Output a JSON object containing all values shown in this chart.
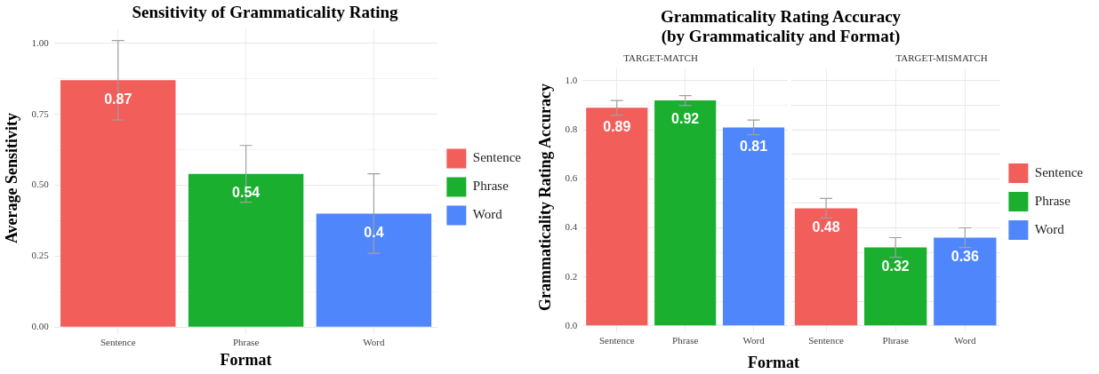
{
  "chart_data": [
    {
      "type": "bar",
      "title": "Sensitivity of Grammaticality Rating",
      "xlabel": "Format",
      "ylabel": "Average Sensitivity",
      "categories": [
        "Sentence",
        "Phrase",
        "Word"
      ],
      "series": [
        {
          "name": "Sentence",
          "color": "#f25e5a",
          "values": [
            0.87,
            null,
            null
          ],
          "errors": [
            0.14,
            null,
            null
          ]
        },
        {
          "name": "Phrase",
          "color": "#1aaf2f",
          "values": [
            null,
            0.54,
            null
          ],
          "errors": [
            null,
            0.1,
            null
          ]
        },
        {
          "name": "Word",
          "color": "#4f86fc",
          "values": [
            null,
            null,
            0.4
          ],
          "errors": [
            null,
            null,
            0.14
          ]
        }
      ],
      "data_labels": true,
      "ylim": [
        0,
        1.05
      ],
      "yticks": [
        {
          "value": 0,
          "label": "0.00"
        },
        {
          "value": 0.125,
          "label": null
        },
        {
          "value": 0.25,
          "label": "0.25"
        },
        {
          "value": 0.375,
          "label": null
        },
        {
          "value": 0.5,
          "label": "0.50"
        },
        {
          "value": 0.625,
          "label": null
        },
        {
          "value": 0.75,
          "label": "0.75"
        },
        {
          "value": 0.875,
          "label": null
        },
        {
          "value": 1,
          "label": "1.00"
        }
      ],
      "grid": true,
      "legend": "right"
    },
    {
      "type": "bar",
      "title": "Grammaticality Rating Accuracy\n(by Grammaticality and Format)",
      "subtitle": "TARGET-MATCH",
      "xlabel": "Format",
      "ylabel": "Grammaticality Rating Accuracy",
      "categories": [
        "Sentence",
        "Phrase",
        "Word"
      ],
      "series": [
        {
          "color": "#f25e5a",
          "values": [
            0.89,
            null,
            null
          ],
          "errors": [
            0.03,
            null,
            null
          ]
        },
        {
          "color": "#1aaf2f",
          "values": [
            null,
            0.92,
            null
          ],
          "errors": [
            null,
            0.02,
            null
          ]
        },
        {
          "color": "#4f86fc",
          "values": [
            null,
            null,
            0.81
          ],
          "errors": [
            null,
            null,
            0.03
          ]
        }
      ],
      "data_labels": true,
      "ylim": [
        0,
        1.05
      ],
      "yticks": [
        {
          "value": 0,
          "label": "0.0"
        },
        {
          "value": 0.1,
          "label": null
        },
        {
          "value": 0.2,
          "label": "0.2"
        },
        {
          "value": 0.3,
          "label": null
        },
        {
          "value": 0.4,
          "label": "0.4"
        },
        {
          "value": 0.5,
          "label": null
        },
        {
          "value": 0.6,
          "label": "0.6"
        },
        {
          "value": 0.7,
          "label": null
        },
        {
          "value": 0.8,
          "label": "0.8"
        },
        {
          "value": 0.9,
          "label": null
        },
        {
          "value": 1,
          "label": "1.0"
        }
      ],
      "grid": true
    },
    {
      "type": "bar",
      "subtitle": "TARGET-MISMATCH",
      "categories": [
        "Sentence",
        "Phrase",
        "Word"
      ],
      "series": [
        {
          "name": "Sentence",
          "color": "#f25e5a",
          "values": [
            0.48,
            null,
            null
          ],
          "errors": [
            0.04,
            null,
            null
          ]
        },
        {
          "name": "Phrase",
          "color": "#1aaf2f",
          "values": [
            null,
            0.32,
            null
          ],
          "errors": [
            null,
            0.04,
            null
          ]
        },
        {
          "name": "Word",
          "color": "#4f86fc",
          "values": [
            null,
            null,
            0.36
          ],
          "errors": [
            null,
            null,
            0.04
          ]
        }
      ],
      "data_labels": true,
      "ylim": [
        0,
        1.05
      ],
      "yticks": [
        0,
        0.1,
        0.2,
        0.3,
        0.4,
        0.5,
        0.6,
        0.7,
        0.8,
        0.9,
        1
      ],
      "grid": true,
      "tick_labels": "x",
      "legend": "right"
    }
  ]
}
